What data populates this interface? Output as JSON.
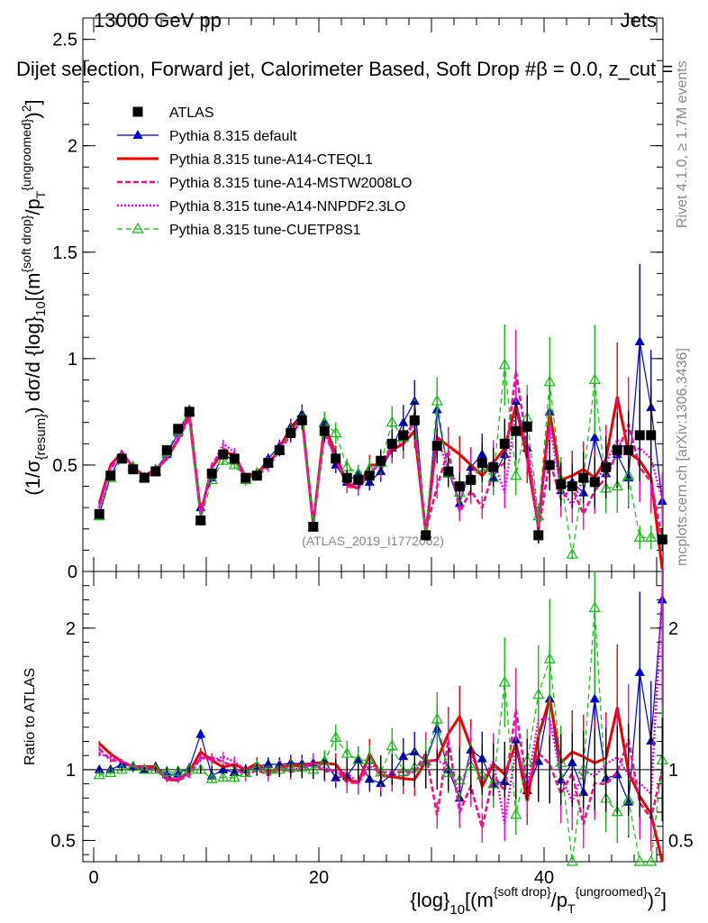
{
  "header": {
    "left": "13000 GeV pp",
    "right": "Jets",
    "title": "Dijet selection, Forward jet, Calorimeter Based, Soft Drop #β = 0.0, z_cut = "
  },
  "side": {
    "rivet": "Rivet 4.1.0, ≥ 1.7M events",
    "mcplots": "mcplots.cern.ch [arXiv:1306.3436]"
  },
  "watermark": "(ATLAS_2019_I1772062)",
  "colors": {
    "atlas": "#000000",
    "default": "#0000cc",
    "cteql1": "#ee0000",
    "mstw": "#ee1188",
    "nnpdf": "#ee00ee",
    "cuetp": "#11bb11"
  },
  "chart_data": [
    {
      "type": "line",
      "panel": "main",
      "xlabel": "{log}10[(m^{soft drop}/p_T^{ungroomed})^2]",
      "ylabel": "(1/σ_{resum}) dσ/d {log}10[(m^{soft drop}/p_T^{ungroomed})^2]",
      "xlim": [
        -0.5,
        51.5
      ],
      "ylim": [
        0,
        2.6
      ],
      "yticks": [
        0,
        0.5,
        1,
        1.5,
        2,
        2.5
      ],
      "yticklabels": [
        "0",
        "0.5",
        "1",
        "1.5",
        "2",
        "2.5"
      ],
      "legend": [
        "ATLAS",
        "Pythia 8.315 default",
        "Pythia 8.315 tune-A14-CTEQL1",
        "Pythia 8.315 tune-A14-MSTW2008LO",
        "Pythia 8.315 tune-A14-NNPDF2.3LO",
        "Pythia 8.315 tune-CUETP8S1"
      ],
      "x": [
        0.5,
        1.5,
        2.5,
        3.5,
        4.5,
        5.5,
        6.5,
        7.5,
        8.5,
        9.5,
        10.5,
        11.5,
        12.5,
        13.5,
        14.5,
        15.5,
        16.5,
        17.5,
        18.5,
        19.5,
        20.5,
        21.5,
        22.5,
        23.5,
        24.5,
        25.5,
        26.5,
        27.5,
        28.5,
        29.5,
        30.5,
        31.5,
        32.5,
        33.5,
        34.5,
        35.5,
        36.5,
        37.5,
        38.5,
        39.5,
        40.5,
        41.5,
        42.5,
        43.5,
        44.5,
        45.5,
        46.5,
        47.5,
        48.5,
        49.5,
        50.5
      ],
      "series": [
        {
          "name": "ATLAS",
          "values": [
            0.27,
            0.45,
            0.53,
            0.48,
            0.44,
            0.47,
            0.57,
            0.67,
            0.75,
            0.24,
            0.46,
            0.55,
            0.53,
            0.44,
            0.45,
            0.51,
            0.57,
            0.65,
            0.71,
            0.21,
            0.66,
            0.53,
            0.44,
            0.43,
            0.45,
            0.52,
            0.6,
            0.64,
            0.71,
            0.17,
            0.59,
            0.47,
            0.4,
            0.43,
            0.51,
            0.49,
            0.6,
            0.66,
            0.68,
            0.17,
            0.5,
            0.41,
            0.4,
            0.44,
            0.42,
            0.49,
            0.57,
            0.57,
            0.64,
            0.64,
            0.15
          ]
        },
        {
          "name": "Pythia 8.315 default",
          "values": [
            0.27,
            0.45,
            0.55,
            0.49,
            0.44,
            0.48,
            0.55,
            0.65,
            0.76,
            0.3,
            0.44,
            0.55,
            0.52,
            0.44,
            0.46,
            0.53,
            0.59,
            0.68,
            0.74,
            0.22,
            0.7,
            0.5,
            0.42,
            0.46,
            0.42,
            0.47,
            0.58,
            0.7,
            0.8,
            0.18,
            0.76,
            0.47,
            0.32,
            0.49,
            0.55,
            0.44,
            0.55,
            0.8,
            0.58,
            0.18,
            0.75,
            0.38,
            0.42,
            0.37,
            0.63,
            0.46,
            0.55,
            0.44,
            1.08,
            0.77,
            0.33
          ]
        },
        {
          "name": "Pythia 8.315 tune-A14-CTEQL1",
          "values": [
            0.32,
            0.5,
            0.56,
            0.49,
            0.45,
            0.48,
            0.53,
            0.62,
            0.74,
            0.27,
            0.49,
            0.56,
            0.55,
            0.44,
            0.47,
            0.5,
            0.58,
            0.67,
            0.73,
            0.22,
            0.69,
            0.55,
            0.41,
            0.39,
            0.5,
            0.5,
            0.57,
            0.6,
            0.66,
            0.18,
            0.63,
            0.59,
            0.55,
            0.5,
            0.45,
            0.51,
            0.58,
            0.78,
            0.53,
            0.21,
            0.75,
            0.43,
            0.45,
            0.48,
            0.44,
            0.53,
            0.82,
            0.56,
            0.52,
            0.44,
            0.01
          ]
        },
        {
          "name": "Pythia 8.315 tune-A14-MSTW2008LO",
          "values": [
            0.31,
            0.48,
            0.56,
            0.49,
            0.44,
            0.47,
            0.54,
            0.62,
            0.72,
            0.26,
            0.5,
            0.58,
            0.54,
            0.42,
            0.45,
            0.49,
            0.57,
            0.64,
            0.71,
            0.22,
            0.65,
            0.53,
            0.4,
            0.39,
            0.46,
            0.51,
            0.59,
            0.63,
            0.7,
            0.19,
            0.4,
            0.57,
            0.28,
            0.38,
            0.3,
            0.47,
            0.51,
            0.94,
            0.6,
            0.19,
            0.52,
            0.34,
            0.39,
            0.27,
            0.38,
            0.44,
            0.56,
            0.69,
            0.49,
            0.42,
            0.15
          ]
        },
        {
          "name": "Pythia 8.315 tune-A14-NNPDF2.3LO",
          "values": [
            0.3,
            0.49,
            0.56,
            0.49,
            0.45,
            0.47,
            0.53,
            0.63,
            0.73,
            0.26,
            0.49,
            0.6,
            0.56,
            0.44,
            0.46,
            0.5,
            0.58,
            0.65,
            0.72,
            0.22,
            0.67,
            0.52,
            0.43,
            0.39,
            0.48,
            0.49,
            0.58,
            0.61,
            0.7,
            0.18,
            0.63,
            0.48,
            0.33,
            0.48,
            0.47,
            0.52,
            0.37,
            0.76,
            0.6,
            0.23,
            0.68,
            0.39,
            0.31,
            0.44,
            0.4,
            0.51,
            0.62,
            0.55,
            0.58,
            0.53,
            0.34
          ]
        },
        {
          "name": "Pythia 8.315 tune-CUETP8S1",
          "values": [
            0.26,
            0.44,
            0.53,
            0.49,
            0.44,
            0.47,
            0.56,
            0.66,
            0.75,
            0.24,
            0.43,
            0.52,
            0.5,
            0.43,
            0.46,
            0.51,
            0.57,
            0.66,
            0.72,
            0.21,
            0.7,
            0.65,
            0.49,
            0.46,
            0.48,
            0.51,
            0.7,
            0.63,
            0.72,
            0.18,
            0.8,
            0.46,
            0.37,
            0.44,
            0.49,
            0.44,
            0.97,
            0.45,
            0.72,
            0.26,
            0.89,
            0.43,
            0.08,
            0.44,
            0.9,
            0.39,
            0.4,
            0.45,
            0.16,
            0.16,
            0.16
          ]
        }
      ]
    },
    {
      "type": "line",
      "panel": "ratio",
      "ylabel": "Ratio to ATLAS",
      "xlabel": "{log}10[(m^{soft drop}/p_T^{ungroomed})^2]",
      "xticks": [
        0,
        20,
        40
      ],
      "xticklabels": [
        "0",
        "20",
        "40"
      ],
      "ylim": [
        0.35,
        2.4
      ],
      "yticks": [
        0.5,
        1,
        2
      ],
      "yticklabels": [
        "0.5",
        "1",
        "2"
      ]
    }
  ]
}
